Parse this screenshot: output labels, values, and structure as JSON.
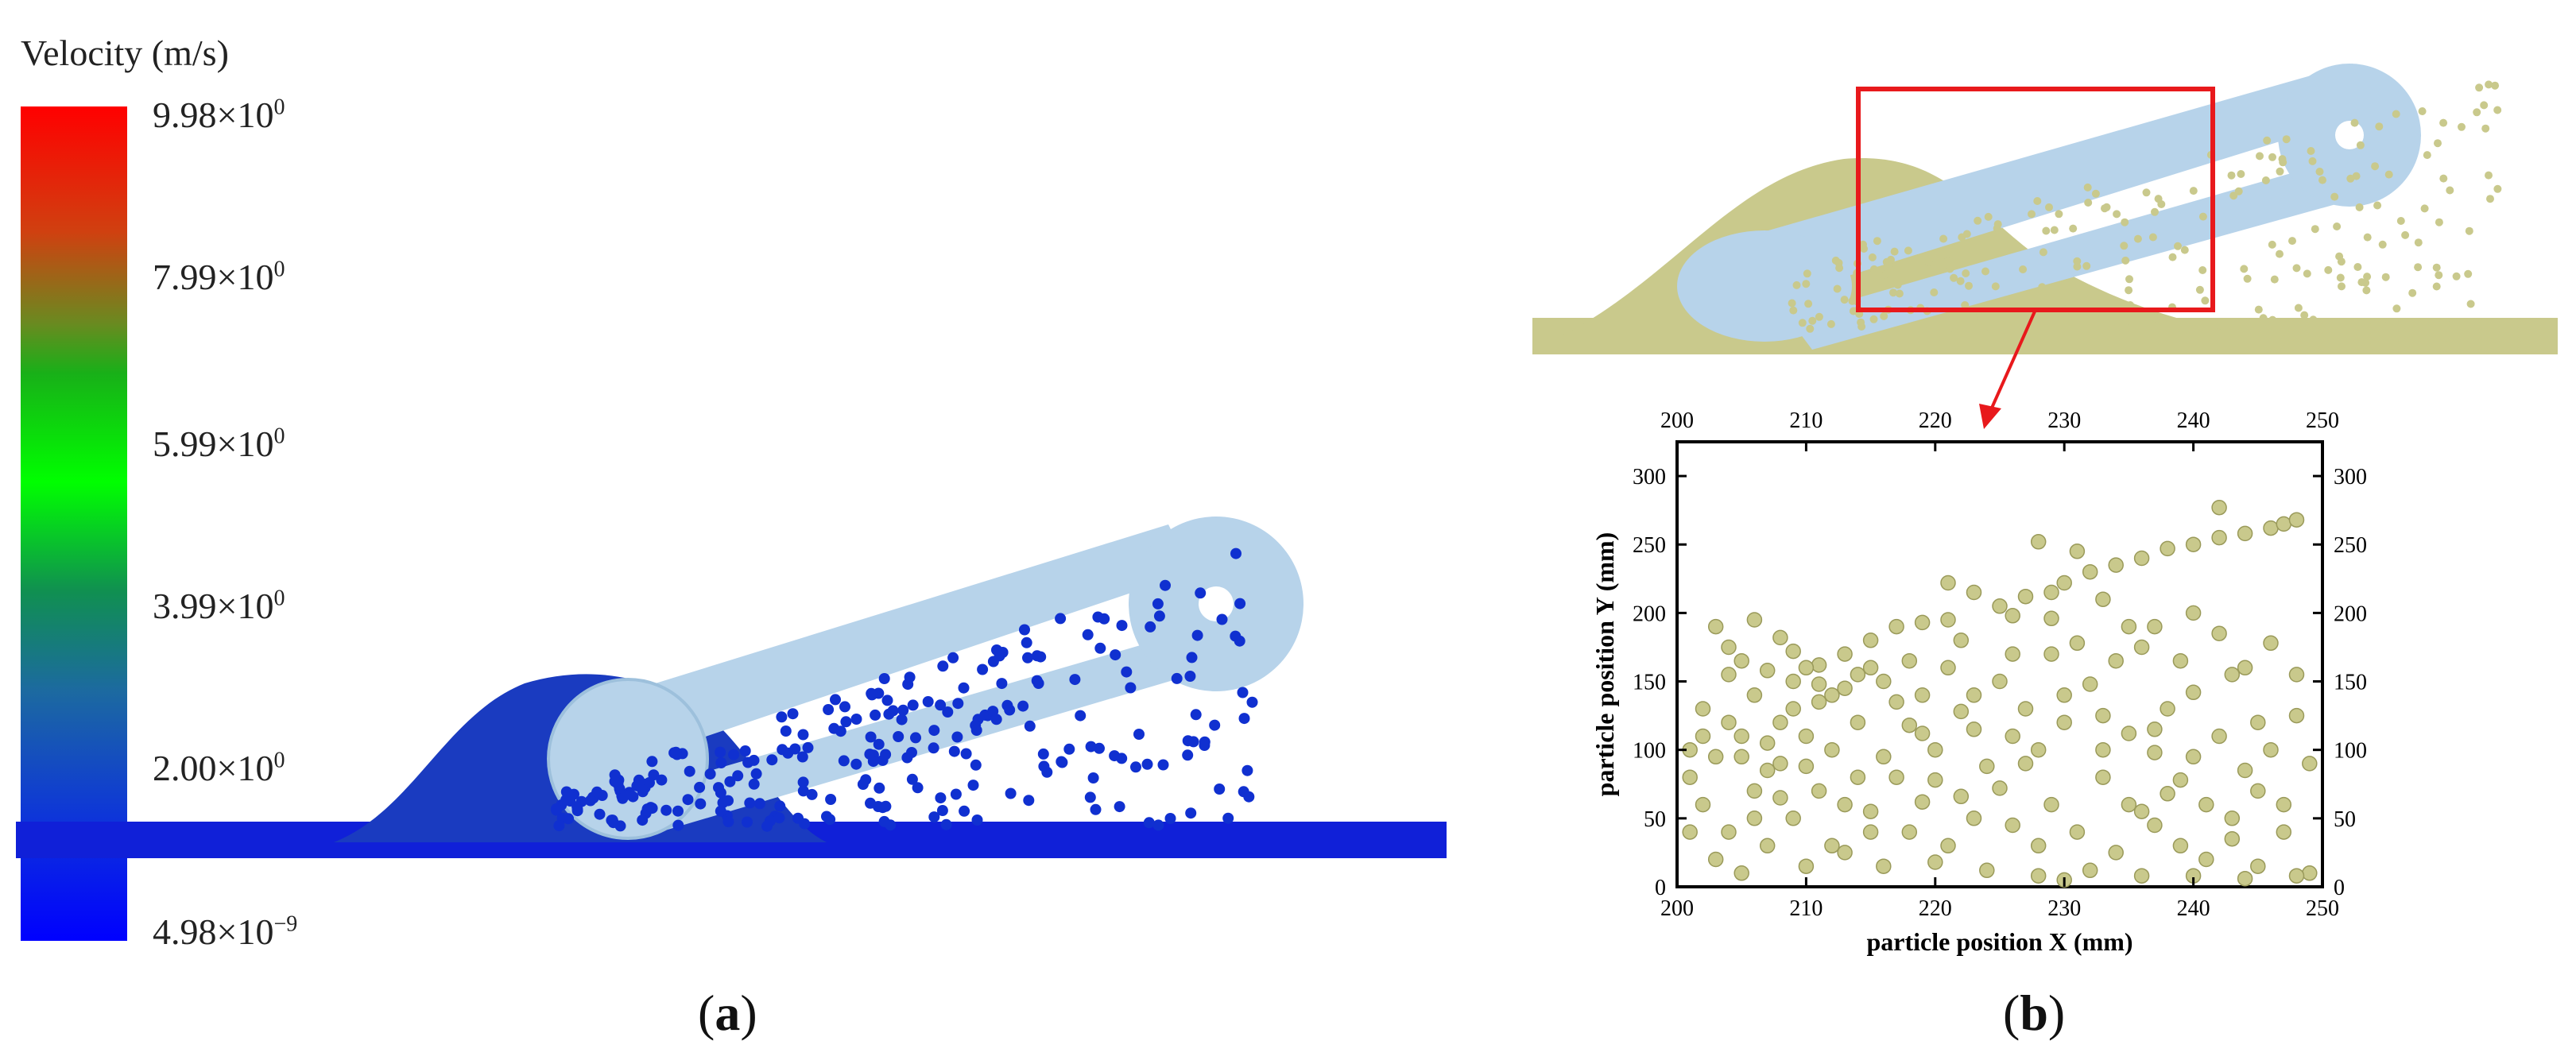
{
  "panel_a": {
    "label": "a",
    "colorbar": {
      "title": "Velocity (m/s)",
      "ticks": [
        {
          "mant": "9.98×10",
          "exp": "0"
        },
        {
          "mant": "7.99×10",
          "exp": "0"
        },
        {
          "mant": "5.99×10",
          "exp": "0"
        },
        {
          "mant": "3.99×10",
          "exp": "0"
        },
        {
          "mant": "2.00×10",
          "exp": "0"
        },
        {
          "mant": "4.98×10",
          "exp": "−9"
        }
      ],
      "colors": [
        "#ff0000",
        "#00ff00",
        "#0000ff"
      ]
    }
  },
  "panel_b": {
    "label": "b",
    "highlight_color": "#e8191c"
  },
  "colors": {
    "belt": "#b7d3ea",
    "particle_olive": "#c9c98c",
    "particle_blue": "#1030d0"
  },
  "chart_data": {
    "type": "scatter",
    "xlabel": "particle position X  (mm)",
    "ylabel": "particle position Y  (mm)",
    "xlim": [
      200,
      250
    ],
    "ylim": [
      0,
      325
    ],
    "xticks": [
      200,
      210,
      220,
      230,
      240,
      250
    ],
    "yticks": [
      0,
      50,
      100,
      150,
      200,
      250,
      300
    ],
    "grid": false,
    "marker_color": "#c9c98c",
    "points": [
      [
        203,
        190
      ],
      [
        204,
        175
      ],
      [
        206,
        195
      ],
      [
        208,
        182
      ],
      [
        209,
        150
      ],
      [
        211,
        162
      ],
      [
        213,
        170
      ],
      [
        215,
        180
      ],
      [
        217,
        190
      ],
      [
        219,
        193
      ],
      [
        221,
        195
      ],
      [
        221,
        222
      ],
      [
        223,
        215
      ],
      [
        225,
        205
      ],
      [
        227,
        212
      ],
      [
        228,
        252
      ],
      [
        229,
        215
      ],
      [
        230,
        222
      ],
      [
        231,
        245
      ],
      [
        232,
        230
      ],
      [
        234,
        235
      ],
      [
        236,
        240
      ],
      [
        238,
        247
      ],
      [
        240,
        250
      ],
      [
        242,
        255
      ],
      [
        242,
        277
      ],
      [
        244,
        258
      ],
      [
        246,
        262
      ],
      [
        247,
        265
      ],
      [
        248,
        268
      ],
      [
        226,
        198
      ],
      [
        229,
        196
      ],
      [
        233,
        210
      ],
      [
        237,
        190
      ],
      [
        240,
        200
      ],
      [
        234,
        165
      ],
      [
        232,
        148
      ],
      [
        236,
        175
      ],
      [
        238,
        130
      ],
      [
        240,
        142
      ],
      [
        243,
        155
      ],
      [
        244,
        160
      ],
      [
        230,
        120
      ],
      [
        226,
        110
      ],
      [
        222,
        128
      ],
      [
        219,
        140
      ],
      [
        216,
        150
      ],
      [
        214,
        120
      ],
      [
        212,
        100
      ],
      [
        210,
        110
      ],
      [
        208,
        90
      ],
      [
        206,
        70
      ],
      [
        204,
        120
      ],
      [
        202,
        60
      ],
      [
        201,
        40
      ],
      [
        203,
        20
      ],
      [
        205,
        10
      ],
      [
        207,
        30
      ],
      [
        209,
        50
      ],
      [
        211,
        70
      ],
      [
        213,
        60
      ],
      [
        215,
        40
      ],
      [
        217,
        80
      ],
      [
        219,
        62
      ],
      [
        221,
        30
      ],
      [
        223,
        50
      ],
      [
        225,
        72
      ],
      [
        227,
        90
      ],
      [
        229,
        60
      ],
      [
        231,
        40
      ],
      [
        233,
        80
      ],
      [
        235,
        60
      ],
      [
        237,
        45
      ],
      [
        239,
        30
      ],
      [
        241,
        20
      ],
      [
        243,
        50
      ],
      [
        245,
        70
      ],
      [
        247,
        40
      ],
      [
        249,
        90
      ],
      [
        249,
        10
      ],
      [
        246,
        100
      ],
      [
        244,
        85
      ],
      [
        242,
        110
      ],
      [
        240,
        95
      ],
      [
        238,
        68
      ],
      [
        236,
        55
      ],
      [
        234,
        25
      ],
      [
        232,
        12
      ],
      [
        230,
        5
      ],
      [
        228,
        30
      ],
      [
        226,
        45
      ],
      [
        224,
        88
      ],
      [
        222,
        66
      ],
      [
        220,
        100
      ],
      [
        218,
        118
      ],
      [
        216,
        95
      ],
      [
        214,
        80
      ],
      [
        212,
        140
      ],
      [
        210,
        160
      ],
      [
        208,
        120
      ],
      [
        206,
        140
      ],
      [
        204,
        155
      ],
      [
        202,
        130
      ],
      [
        201,
        100
      ],
      [
        201,
        80
      ],
      [
        203,
        95
      ],
      [
        205,
        110
      ],
      [
        207,
        105
      ],
      [
        209,
        130
      ],
      [
        211,
        135
      ],
      [
        213,
        145
      ],
      [
        215,
        160
      ],
      [
        217,
        135
      ],
      [
        219,
        112
      ],
      [
        221,
        160
      ],
      [
        223,
        140
      ],
      [
        225,
        150
      ],
      [
        227,
        130
      ],
      [
        229,
        170
      ],
      [
        231,
        178
      ],
      [
        233,
        100
      ],
      [
        235,
        112
      ],
      [
        237,
        98
      ],
      [
        239,
        78
      ],
      [
        241,
        60
      ],
      [
        243,
        35
      ],
      [
        245,
        15
      ],
      [
        247,
        60
      ],
      [
        248,
        155
      ],
      [
        246,
        178
      ],
      [
        212,
        30
      ],
      [
        216,
        15
      ],
      [
        220,
        18
      ],
      [
        224,
        12
      ],
      [
        228,
        8
      ],
      [
        236,
        8
      ],
      [
        240,
        8
      ],
      [
        244,
        6
      ],
      [
        248,
        8
      ],
      [
        206,
        50
      ],
      [
        204,
        40
      ],
      [
        208,
        65
      ],
      [
        210,
        88
      ],
      [
        202,
        110
      ],
      [
        205,
        165
      ],
      [
        207,
        158
      ],
      [
        209,
        172
      ],
      [
        211,
        148
      ],
      [
        214,
        155
      ],
      [
        218,
        165
      ],
      [
        222,
        180
      ],
      [
        226,
        170
      ],
      [
        230,
        140
      ],
      [
        235,
        190
      ],
      [
        239,
        165
      ],
      [
        242,
        185
      ],
      [
        245,
        120
      ],
      [
        248,
        125
      ],
      [
        237,
        115
      ],
      [
        233,
        125
      ],
      [
        228,
        100
      ],
      [
        223,
        115
      ],
      [
        220,
        78
      ],
      [
        218,
        40
      ],
      [
        215,
        55
      ],
      [
        213,
        25
      ],
      [
        210,
        15
      ],
      [
        207,
        85
      ],
      [
        205,
        95
      ]
    ]
  }
}
